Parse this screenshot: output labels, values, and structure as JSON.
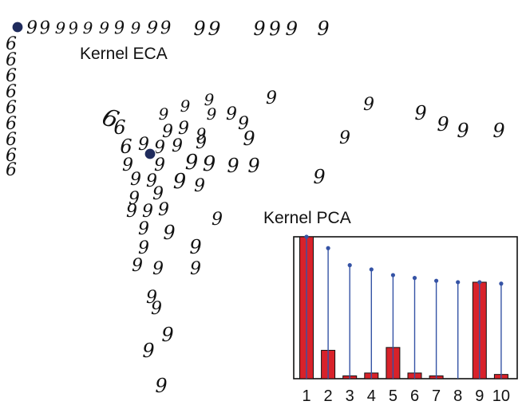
{
  "labels": {
    "eca": "Kernel ECA",
    "pca": "Kernel PCA"
  },
  "scatter": {
    "glyphs": [
      "9",
      "6"
    ],
    "highlight_color": "#1f2b5c"
  },
  "chart_data": {
    "type": "bar",
    "categories": [
      "1",
      "2",
      "3",
      "4",
      "5",
      "6",
      "7",
      "8",
      "9",
      "10"
    ],
    "series": [
      {
        "role": "bars",
        "color": "#d8222a",
        "values": [
          1.0,
          0.2,
          0.02,
          0.04,
          0.22,
          0.04,
          0.02,
          0.0,
          0.68,
          0.03
        ]
      },
      {
        "role": "stems",
        "color": "#3553a5",
        "values": [
          1.0,
          0.92,
          0.8,
          0.77,
          0.73,
          0.71,
          0.69,
          0.68,
          0.68,
          0.67
        ]
      }
    ],
    "ylim": [
      0,
      1
    ],
    "title": "",
    "xlabel": "",
    "ylabel": ""
  }
}
